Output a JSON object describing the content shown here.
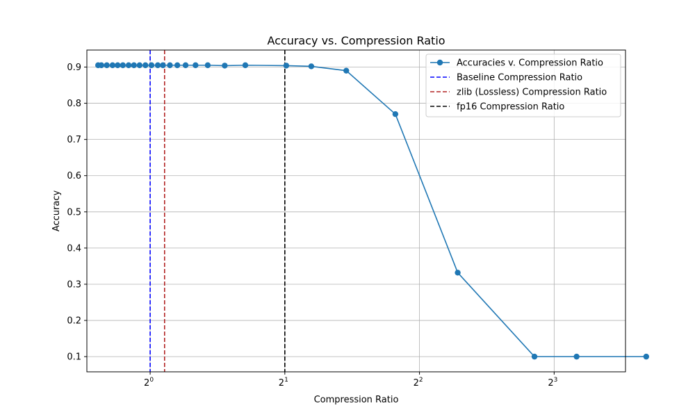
{
  "chart_data": {
    "type": "line",
    "title": "Accuracy vs. Compression Ratio",
    "xlabel": "Compression Ratio",
    "ylabel": "Accuracy",
    "x_scale": "log2",
    "xlim": [
      0.722,
      11.55
    ],
    "ylim": [
      0.058,
      0.947
    ],
    "grid": true,
    "legend_position": "top-right",
    "x_ticks": [
      {
        "value": 1,
        "base": "2",
        "exp": "0"
      },
      {
        "value": 2,
        "base": "2",
        "exp": "1"
      },
      {
        "value": 4,
        "base": "2",
        "exp": "2"
      },
      {
        "value": 8,
        "base": "2",
        "exp": "3"
      }
    ],
    "y_ticks": [
      {
        "value": 0.1,
        "label": "0.1"
      },
      {
        "value": 0.2,
        "label": "0.2"
      },
      {
        "value": 0.3,
        "label": "0.3"
      },
      {
        "value": 0.4,
        "label": "0.4"
      },
      {
        "value": 0.5,
        "label": "0.5"
      },
      {
        "value": 0.6,
        "label": "0.6"
      },
      {
        "value": 0.7,
        "label": "0.7"
      },
      {
        "value": 0.8,
        "label": "0.8"
      },
      {
        "value": 0.9,
        "label": "0.9"
      }
    ],
    "series": [
      {
        "name": "Accuracies v. Compression Ratio",
        "color": "#1f77b4",
        "x": [
          0.765,
          0.778,
          0.8,
          0.824,
          0.846,
          0.869,
          0.895,
          0.92,
          0.947,
          0.976,
          1.007,
          1.04,
          1.068,
          1.107,
          1.15,
          1.2,
          1.263,
          1.345,
          1.468,
          1.632,
          2.015,
          2.292,
          2.744,
          3.533,
          4.87,
          7.23,
          8.98,
          12.85
        ],
        "y": [
          0.905,
          0.905,
          0.905,
          0.905,
          0.905,
          0.905,
          0.905,
          0.905,
          0.905,
          0.905,
          0.905,
          0.905,
          0.905,
          0.905,
          0.905,
          0.905,
          0.905,
          0.905,
          0.904,
          0.905,
          0.904,
          0.902,
          0.89,
          0.77,
          0.332,
          0.1,
          0.1,
          0.1
        ]
      }
    ],
    "reference_lines": [
      {
        "name": "Baseline Compression Ratio",
        "x": 1.0,
        "color": "#0000ff"
      },
      {
        "name": "zlib (Lossless) Compression Ratio",
        "x": 1.077,
        "color": "#b22222"
      },
      {
        "name": "fp16 Compression Ratio",
        "x": 2.0,
        "color": "#000000"
      }
    ]
  }
}
